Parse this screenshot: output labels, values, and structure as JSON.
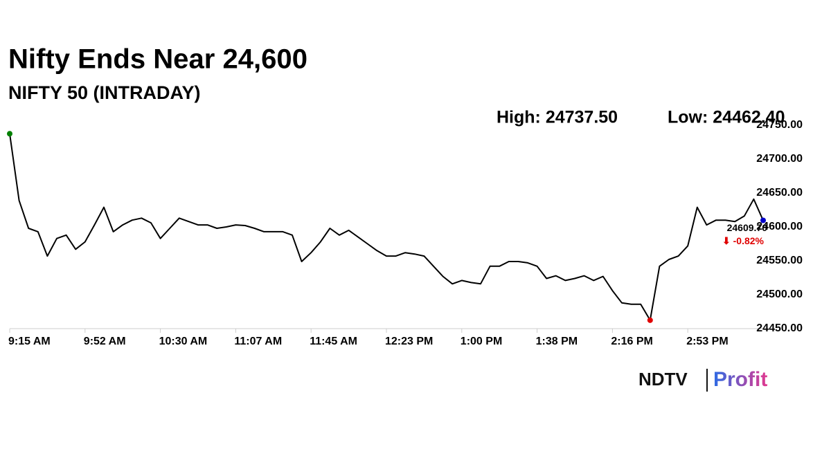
{
  "chart_data": {
    "type": "line",
    "title": "Nifty Ends Near 24,600",
    "subtitle": "NIFTY 50 (INTRADAY)",
    "high_text": "High: 24737.50",
    "low_text": "Low: 24462.40",
    "last_label": "24609.70",
    "change_label": "⬇ -0.82%",
    "categories": [
      "9:15 AM",
      null,
      null,
      null,
      null,
      null,
      null,
      null,
      "9:52 AM",
      null,
      null,
      null,
      null,
      null,
      null,
      null,
      "10:30 AM",
      null,
      null,
      null,
      null,
      null,
      null,
      null,
      "11:07 AM",
      null,
      null,
      null,
      null,
      null,
      null,
      null,
      "11:45 AM",
      null,
      null,
      null,
      null,
      null,
      null,
      null,
      "12:23 PM",
      null,
      null,
      null,
      null,
      null,
      null,
      null,
      "1:00 PM",
      null,
      null,
      null,
      null,
      null,
      null,
      null,
      "1:38 PM",
      null,
      null,
      null,
      null,
      null,
      null,
      null,
      "2:16 PM",
      null,
      null,
      null,
      null,
      null,
      null,
      null,
      "2:53 PM",
      null,
      null,
      null,
      null,
      null,
      null,
      null,
      null
    ],
    "series": [
      {
        "name": "NIFTY 50",
        "color": "#000000",
        "values": [
          24737.5,
          24639,
          24598,
          24593,
          24557,
          24583,
          24588,
          24567,
          24578,
          24603,
          24629,
          24593,
          24603,
          24610,
          24613,
          24606,
          24583,
          24598,
          24613,
          24608,
          24603,
          24603,
          24598,
          24600,
          24603,
          24602,
          24598,
          24593,
          24593,
          24593,
          24588,
          24549,
          24562,
          24578,
          24598,
          24588,
          24595,
          24585,
          24575,
          24565,
          24557,
          24557,
          24562,
          24560,
          24557,
          24542,
          24527,
          24516,
          24521,
          24518,
          24516,
          24542,
          24542,
          24549,
          24549,
          24547,
          24542,
          24524,
          24528,
          24521,
          24524,
          24528,
          24521,
          24527,
          24506,
          24488,
          24486,
          24486,
          24462.4,
          24542,
          24552,
          24557,
          24572,
          24629,
          24603,
          24610,
          24610,
          24608,
          24616,
          24641,
          24609.7
        ]
      }
    ],
    "high_index": 0,
    "low_index": 68,
    "last_index": 80,
    "high_color": "#008000",
    "low_color": "#e00000",
    "last_color": "#0000cc",
    "change_color": "#e00000",
    "ylim": [
      24450,
      24750
    ],
    "yticks": [
      {
        "value": 24450,
        "label": "24450.00"
      },
      {
        "value": 24500,
        "label": "24500.00"
      },
      {
        "value": 24550,
        "label": "24550.00"
      },
      {
        "value": 24600,
        "label": "24600.00"
      },
      {
        "value": 24650,
        "label": "24650.00"
      },
      {
        "value": 24700,
        "label": "24700.00"
      },
      {
        "value": 24750,
        "label": "24750.00"
      }
    ],
    "grid": false
  },
  "logo": {
    "left": "NDTV",
    "right": "Profit"
  }
}
